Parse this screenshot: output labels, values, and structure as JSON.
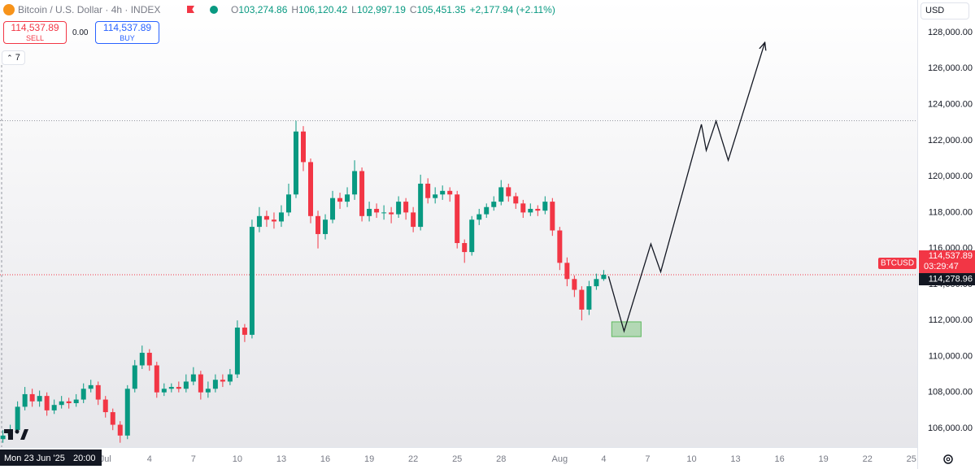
{
  "header": {
    "symbol": "Bitcoin / U.S. Dollar · 4h · INDEX",
    "ohlc": [
      {
        "key": "O",
        "value": "103,274.86"
      },
      {
        "key": "H",
        "value": "106,120.42"
      },
      {
        "key": "L",
        "value": "102,997.19"
      },
      {
        "key": "C",
        "value": "105,451.35"
      }
    ],
    "change": "+2,177.94 (+2.11%)"
  },
  "trade_panel": {
    "sell_price": "114,537.89",
    "sell": "SELL",
    "spread": "0.00",
    "buy_price": "114,537.89",
    "buy": "BUY"
  },
  "indicators": "7",
  "currency": "USD",
  "price_tags": {
    "symbol": "BTCUSD",
    "last": "114,537.89",
    "countdown": "03:29:47",
    "other": "114,278.96"
  },
  "crosshair_label": {
    "date": "Mon 23 Jun '25",
    "time": "20:00"
  },
  "chart_data": {
    "type": "candlestick",
    "x": [
      -6,
      -5.5,
      -5,
      -4.5,
      -4,
      -3.5,
      -3,
      -2.5,
      -2,
      -1.5,
      -1,
      -0.5,
      0,
      0.5,
      1,
      1.5,
      2,
      2.5,
      3,
      3.5,
      4,
      4.5,
      5,
      5.5,
      6,
      6.5,
      7,
      7.5,
      8,
      8.5,
      9,
      9.5,
      10,
      10.5,
      11,
      11.5,
      12,
      12.5,
      13,
      13.5,
      14,
      14.5,
      15,
      15.5,
      16,
      16.5,
      17,
      17.5,
      18,
      18.5,
      19,
      19.5,
      20,
      20.5,
      21,
      21.5,
      22,
      22.5,
      23,
      23.5,
      24,
      24.5,
      25,
      25.5,
      26,
      26.5,
      27,
      27.5,
      28,
      28.5,
      29,
      29.5,
      30,
      30.5,
      31,
      31.5,
      32,
      32.5,
      33,
      33.5,
      34,
      34.5,
      35
    ],
    "open": [
      105400,
      105600,
      105900,
      107200,
      107900,
      107500,
      107800,
      107000,
      107300,
      107500,
      107400,
      107600,
      108200,
      108400,
      107600,
      106900,
      106200,
      105600,
      108200,
      109500,
      110200,
      109500,
      108000,
      108200,
      108300,
      108200,
      108600,
      109000,
      108000,
      108200,
      108700,
      108600,
      109000,
      111600,
      111200,
      117200,
      117800,
      117600,
      117500,
      118000,
      119000,
      122500,
      120800,
      117800,
      116800,
      117600,
      118800,
      118600,
      119000,
      120300,
      117800,
      118200,
      118000,
      118000,
      117900,
      118600,
      118000,
      117200,
      119600,
      118800,
      119000,
      119200,
      119000,
      116300,
      115800,
      117600,
      117900,
      118300,
      118600,
      119400,
      118900,
      118500,
      118000,
      118200,
      118100,
      118600,
      117000,
      115200,
      114300,
      113700,
      112600,
      113900,
      114300
    ],
    "high": [
      105900,
      106200,
      107500,
      108300,
      108200,
      108100,
      108000,
      107600,
      107800,
      107700,
      107900,
      108500,
      108700,
      108600,
      107800,
      107100,
      106400,
      108400,
      109800,
      110600,
      110400,
      109700,
      108500,
      108500,
      108600,
      109000,
      109400,
      109200,
      108600,
      109000,
      109000,
      109300,
      112000,
      111800,
      117600,
      118300,
      118100,
      118000,
      118400,
      119600,
      123100,
      122800,
      121000,
      118100,
      117900,
      119200,
      119100,
      119400,
      120900,
      120500,
      118600,
      118500,
      118400,
      118300,
      118900,
      118800,
      118300,
      120100,
      119900,
      119400,
      119500,
      119400,
      119200,
      116500,
      117800,
      118200,
      118500,
      118900,
      119800,
      119600,
      119100,
      118700,
      118500,
      118400,
      118900,
      118800,
      117200,
      115500,
      114500,
      113900,
      114200,
      114600,
      114800
    ],
    "low": [
      105200,
      105400,
      105700,
      107000,
      107200,
      107200,
      106700,
      106800,
      107100,
      107100,
      107200,
      107400,
      108000,
      107300,
      106600,
      105900,
      105200,
      105400,
      108000,
      109300,
      109200,
      107700,
      107800,
      108000,
      108000,
      108000,
      108400,
      107600,
      107700,
      108000,
      108300,
      108400,
      108800,
      110800,
      111000,
      116900,
      117200,
      117100,
      117200,
      117800,
      118800,
      120300,
      117400,
      116000,
      116500,
      117400,
      118200,
      118300,
      118700,
      117500,
      117500,
      117700,
      117600,
      117400,
      117700,
      117600,
      116900,
      117000,
      118500,
      118500,
      118700,
      118600,
      116000,
      115200,
      115600,
      117300,
      117700,
      118100,
      118400,
      118600,
      118200,
      117700,
      117800,
      117800,
      117900,
      116700,
      114800,
      113900,
      113300,
      112000,
      112300,
      113700,
      114200
    ],
    "close": [
      105600,
      105900,
      107200,
      107900,
      107500,
      107800,
      107000,
      107300,
      107500,
      107400,
      107600,
      108200,
      108400,
      107600,
      106900,
      106200,
      105600,
      108200,
      109500,
      110200,
      109500,
      108000,
      108200,
      108300,
      108200,
      108600,
      109000,
      108000,
      108200,
      108700,
      108600,
      109000,
      111600,
      111200,
      117200,
      117800,
      117600,
      117500,
      118000,
      119000,
      122500,
      120800,
      117800,
      116800,
      117600,
      118800,
      118600,
      119000,
      120300,
      117800,
      118200,
      118000,
      118000,
      117900,
      118600,
      118000,
      117200,
      119600,
      118800,
      119000,
      119200,
      119000,
      116300,
      115800,
      117600,
      117900,
      118300,
      118600,
      119400,
      118900,
      118500,
      118000,
      118200,
      118100,
      118600,
      117000,
      115200,
      114300,
      113700,
      112600,
      113900,
      114300,
      114537.89
    ],
    "up_color": "#089981",
    "down_color": "#f23645",
    "xlim": [
      -6.2,
      56.4
    ],
    "xticks": [
      {
        "value": 1,
        "label": "Jul"
      },
      4,
      7,
      10,
      13,
      16,
      19,
      22,
      25,
      28,
      {
        "value": 32,
        "label": "Aug"
      },
      {
        "value": 35,
        "label": "4"
      },
      {
        "value": 38,
        "label": "7"
      },
      {
        "value": 41,
        "label": "10"
      },
      {
        "value": 44,
        "label": "13"
      },
      {
        "value": 47,
        "label": "16"
      },
      {
        "value": 50,
        "label": "19"
      },
      {
        "value": 53,
        "label": "22"
      },
      {
        "value": 56,
        "label": "25"
      }
    ],
    "ylim": [
      104960,
      129810
    ],
    "yticks": [
      {
        "value": 106000,
        "label": "106,000.00"
      },
      {
        "value": 108000,
        "label": "108,000.00"
      },
      {
        "value": 110000,
        "label": "110,000.00"
      },
      {
        "value": 112000,
        "label": "112,000.00"
      },
      {
        "value": 114000,
        "label": "114,000.00"
      },
      {
        "value": 116000,
        "label": "116,000.00"
      },
      {
        "value": 118000,
        "label": "118,000.00"
      },
      {
        "value": 120000,
        "label": "120,000.00"
      },
      {
        "value": 122000,
        "label": "122,000.00"
      },
      {
        "value": 124000,
        "label": "124,000.00"
      },
      {
        "value": 126000,
        "label": "126,000.00"
      },
      {
        "value": 128000,
        "label": "128,000.00"
      }
    ],
    "level": 123100,
    "projection": {
      "x": [
        35.33,
        36.39,
        38.22,
        38.89,
        41.67,
        42.0,
        42.67,
        43.5,
        46.0
      ],
      "y": [
        114450,
        111400,
        116250,
        114700,
        122900,
        121450,
        123080,
        120900,
        127450
      ],
      "color": "#131722"
    },
    "zone": {
      "x": [
        35.55,
        37.55
      ],
      "y": [
        111100,
        111920
      ],
      "color": "#5cb85c"
    }
  }
}
